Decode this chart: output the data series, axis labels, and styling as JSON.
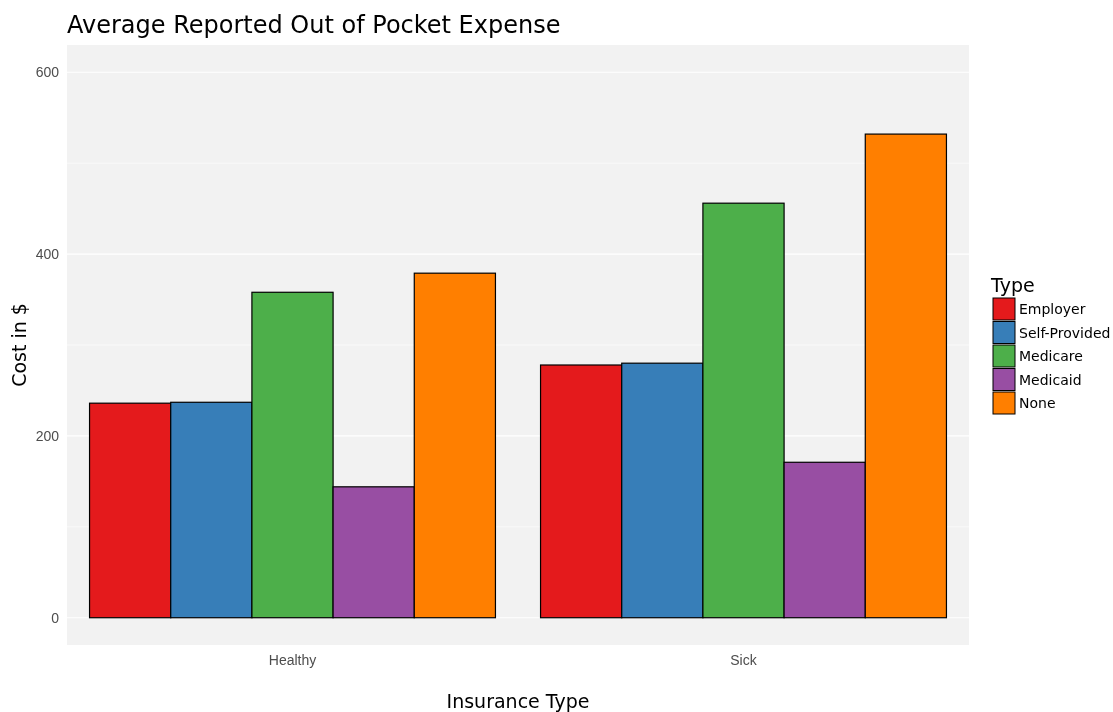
{
  "chart_data": {
    "type": "bar",
    "title": "Average Reported Out of Pocket Expense",
    "xlabel": "Insurance Type",
    "ylabel": "Cost in $",
    "legend_title": "Type",
    "categories": [
      "Healthy",
      "Sick"
    ],
    "series": [
      {
        "name": "Employer",
        "color": "#e41a1c",
        "values": [
          236,
          278
        ]
      },
      {
        "name": "Self-Provided",
        "color": "#377eb8",
        "values": [
          237,
          280
        ]
      },
      {
        "name": "Medicare",
        "color": "#4daf4a",
        "values": [
          358,
          456
        ]
      },
      {
        "name": "Medicaid",
        "color": "#984ea3",
        "values": [
          144,
          171
        ]
      },
      {
        "name": "None",
        "color": "#ff7f00",
        "values": [
          379,
          532
        ]
      }
    ],
    "ylim": [
      -30,
      630
    ],
    "yticks": [
      0,
      200,
      400,
      600
    ],
    "grid": true,
    "legend": "right"
  }
}
